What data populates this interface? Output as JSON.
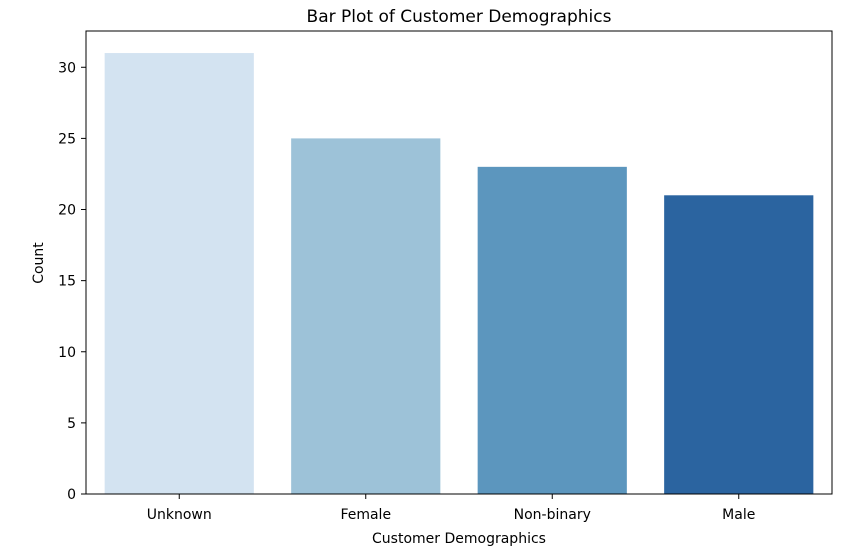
{
  "chart_data": {
    "type": "bar",
    "title": "Bar Plot of Customer Demographics",
    "xlabel": "Customer Demographics",
    "ylabel": "Count",
    "categories": [
      "Unknown",
      "Female",
      "Non-binary",
      "Male"
    ],
    "values": [
      31,
      25,
      23,
      21
    ],
    "colors": [
      "#d3e3f1",
      "#9dc2d8",
      "#5c96be",
      "#2b64a0"
    ],
    "ylim": [
      0,
      32.55
    ],
    "yticks": [
      0,
      5,
      10,
      15,
      20,
      25,
      30
    ],
    "grid": false,
    "legend": "none"
  }
}
